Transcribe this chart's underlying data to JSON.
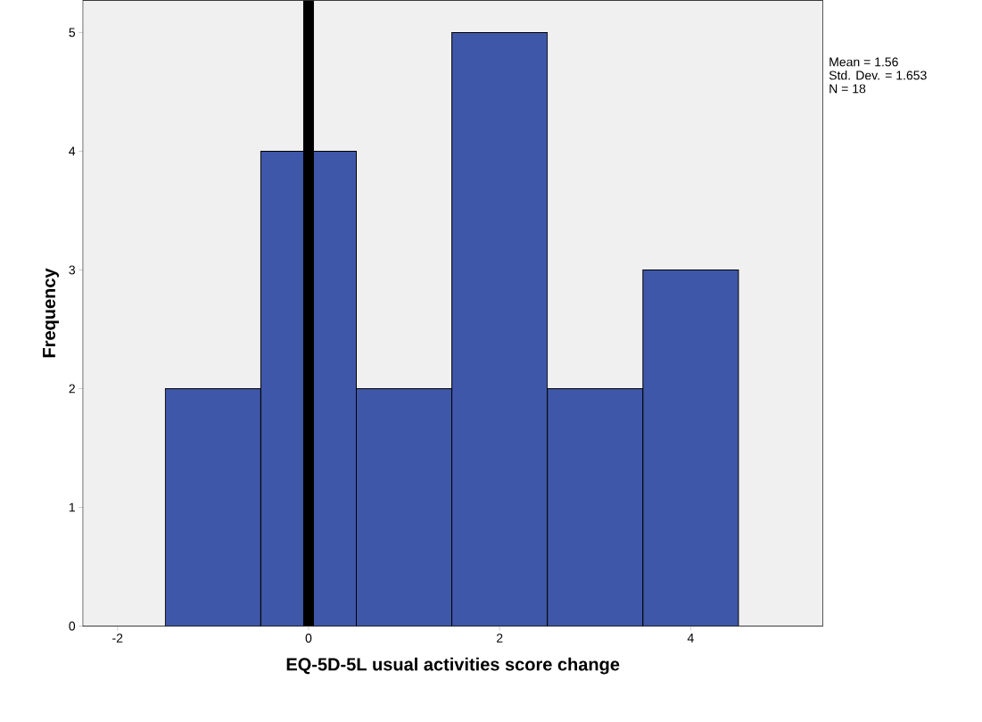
{
  "chart_data": {
    "type": "histogram",
    "xlabel": "EQ-5D-5L usual activities score change",
    "ylabel": "Frequency",
    "bins": [
      -1.5,
      -0.5,
      0.5,
      1.5,
      2.5,
      3.5,
      4.5
    ],
    "values": [
      2,
      4,
      2,
      5,
      2,
      3
    ],
    "color": "#3f57a8",
    "xlim": [
      -2.36,
      5.38
    ],
    "xticks": [
      -2,
      0,
      2,
      4
    ],
    "ylim": [
      0,
      5.27
    ],
    "yticks": [
      0,
      1,
      2,
      3,
      4,
      5
    ],
    "ref_lines": [
      {
        "axis": "x",
        "value": 0,
        "color": "#000000"
      }
    ],
    "annotations": [
      "Mean = 1.56",
      "Std. Dev. = 1.653",
      "N = 18"
    ]
  }
}
